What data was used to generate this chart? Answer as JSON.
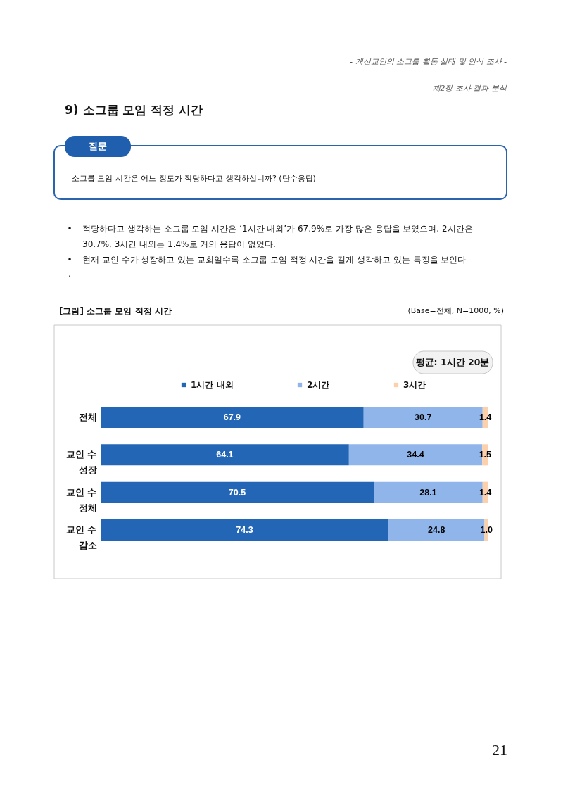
{
  "chart_data": {
    "type": "bar",
    "orientation": "horizontal",
    "stacked": true,
    "title": "[그림] 소그룹 모임 적정 시간",
    "categories": [
      "전체",
      "교인 수\n성장",
      "교인 수\n정체",
      "교인 수\n감소"
    ],
    "series": [
      {
        "name": "1시간 내외",
        "color": "#2366b5",
        "values": [
          67.9,
          64.1,
          70.5,
          74.3
        ],
        "value_labels": [
          "67.9",
          "64.1",
          "70.5",
          "74.3"
        ]
      },
      {
        "name": "2시간",
        "color": "#8fb5ea",
        "values": [
          30.7,
          34.4,
          28.1,
          24.8
        ],
        "value_labels": [
          "30.7",
          "34.4",
          "28.1",
          "24.8"
        ]
      },
      {
        "name": "3시간",
        "color": "#fbd0ab",
        "values": [
          1.4,
          1.5,
          1.4,
          1.0
        ],
        "value_labels": [
          "1.4",
          "1.5",
          "1.4",
          "1.0"
        ]
      }
    ],
    "legend": "top",
    "tick_labels": "y",
    "annotations": [
      "- 개신교인의 소그룹 활동 실태 및 인식 조사 -",
      "제2장 조사 결과 분석",
      "9) 소그룹 모임 적정 시간",
      "질문",
      "소그룹 모임 시간은 어느 정도가 적당하다고 생각하십니까? (단수응답)",
      "•",
      "적당하다고 생각하는 소그룹 모임 시간은 ‘1시간 내외’가 67.9%로 가장 많은 응답을 보였으며, 2시간은\n30.7%, 3시간 내외는 1.4%로 거의 응답이 없었다.",
      "•",
      "현재 교인 수가 성장하고 있는 교회일수록 소그룹 모임 적정 시간을 길게 생각하고 있는 특징을 보인다",
      ".",
      "(Base=전체, N=1000, %)",
      "평균: 1시간 20분",
      "21"
    ]
  }
}
